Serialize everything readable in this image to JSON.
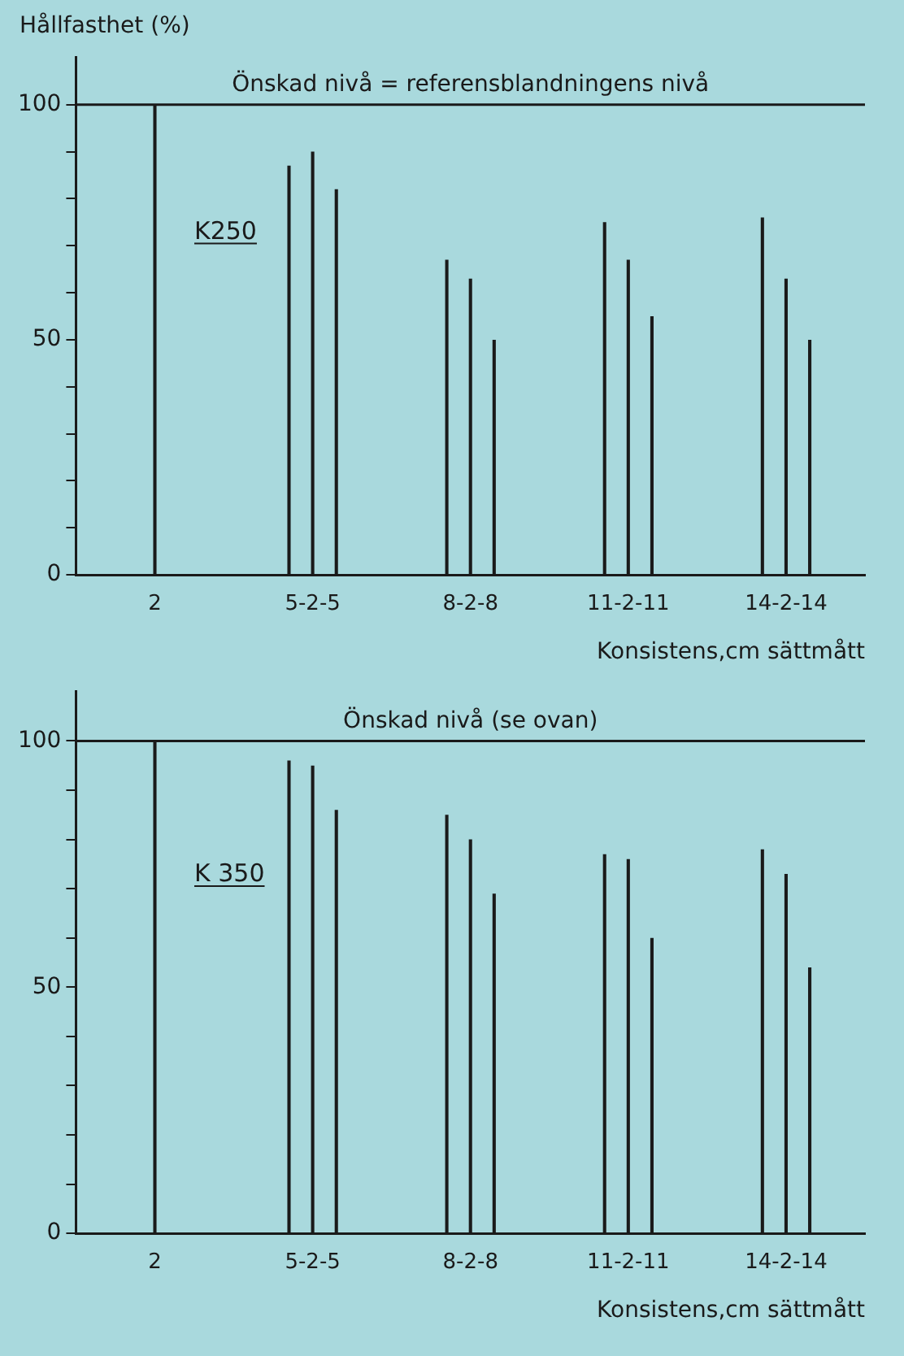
{
  "chart_data": [
    {
      "type": "bar",
      "ylabel": "Hållfasthet (%)",
      "xlabel": "Konsistens,cm sättmått",
      "categories": [
        "2",
        "5-2-5",
        "8-2-8",
        "11-2-11",
        "14-2-14"
      ],
      "series": [
        {
          "color": "#1a1a1a",
          "values": [
            null,
            87,
            67,
            75,
            76
          ]
        },
        {
          "color": "#1a1a1a",
          "values": [
            100,
            90,
            63,
            67,
            63
          ]
        },
        {
          "color": "#1a1a1a",
          "values": [
            null,
            82,
            50,
            55,
            50
          ]
        }
      ],
      "ylim": [
        0,
        110
      ],
      "yticks": [
        0,
        {
          "value": 10,
          "label": null
        },
        {
          "value": 20,
          "label": null
        },
        {
          "value": 30,
          "label": null
        },
        {
          "value": 40,
          "label": null
        },
        50,
        {
          "value": 60,
          "label": null
        },
        {
          "value": 70,
          "label": null
        },
        {
          "value": 80,
          "label": null
        },
        {
          "value": 90,
          "label": null
        },
        100
      ],
      "ref_lines": [
        {
          "axis": "y",
          "value": 100,
          "label": "Önskad nivå = referensblandningens nivå"
        }
      ],
      "annotations": [
        "K250"
      ],
      "grid": false,
      "legend": false
    },
    {
      "type": "bar",
      "xlabel": "Konsistens,cm sättmått",
      "categories": [
        "2",
        "5-2-5",
        "8-2-8",
        "11-2-11",
        "14-2-14"
      ],
      "series": [
        {
          "color": "#1a1a1a",
          "values": [
            null,
            96,
            85,
            77,
            78
          ]
        },
        {
          "color": "#1a1a1a",
          "values": [
            100,
            95,
            80,
            76,
            73
          ]
        },
        {
          "color": "#1a1a1a",
          "values": [
            null,
            86,
            69,
            60,
            54
          ]
        }
      ],
      "ylim": [
        0,
        110
      ],
      "yticks": [
        0,
        {
          "value": 10,
          "label": null
        },
        {
          "value": 20,
          "label": null
        },
        {
          "value": 30,
          "label": null
        },
        {
          "value": 40,
          "label": null
        },
        50,
        {
          "value": 60,
          "label": null
        },
        {
          "value": 70,
          "label": null
        },
        {
          "value": 80,
          "label": null
        },
        {
          "value": 90,
          "label": null
        },
        100
      ],
      "ref_lines": [
        {
          "axis": "y",
          "value": 100,
          "label": "Önskad nivå (se ovan)"
        }
      ],
      "annotations": [
        "K 350"
      ],
      "grid": false,
      "legend": false
    }
  ]
}
